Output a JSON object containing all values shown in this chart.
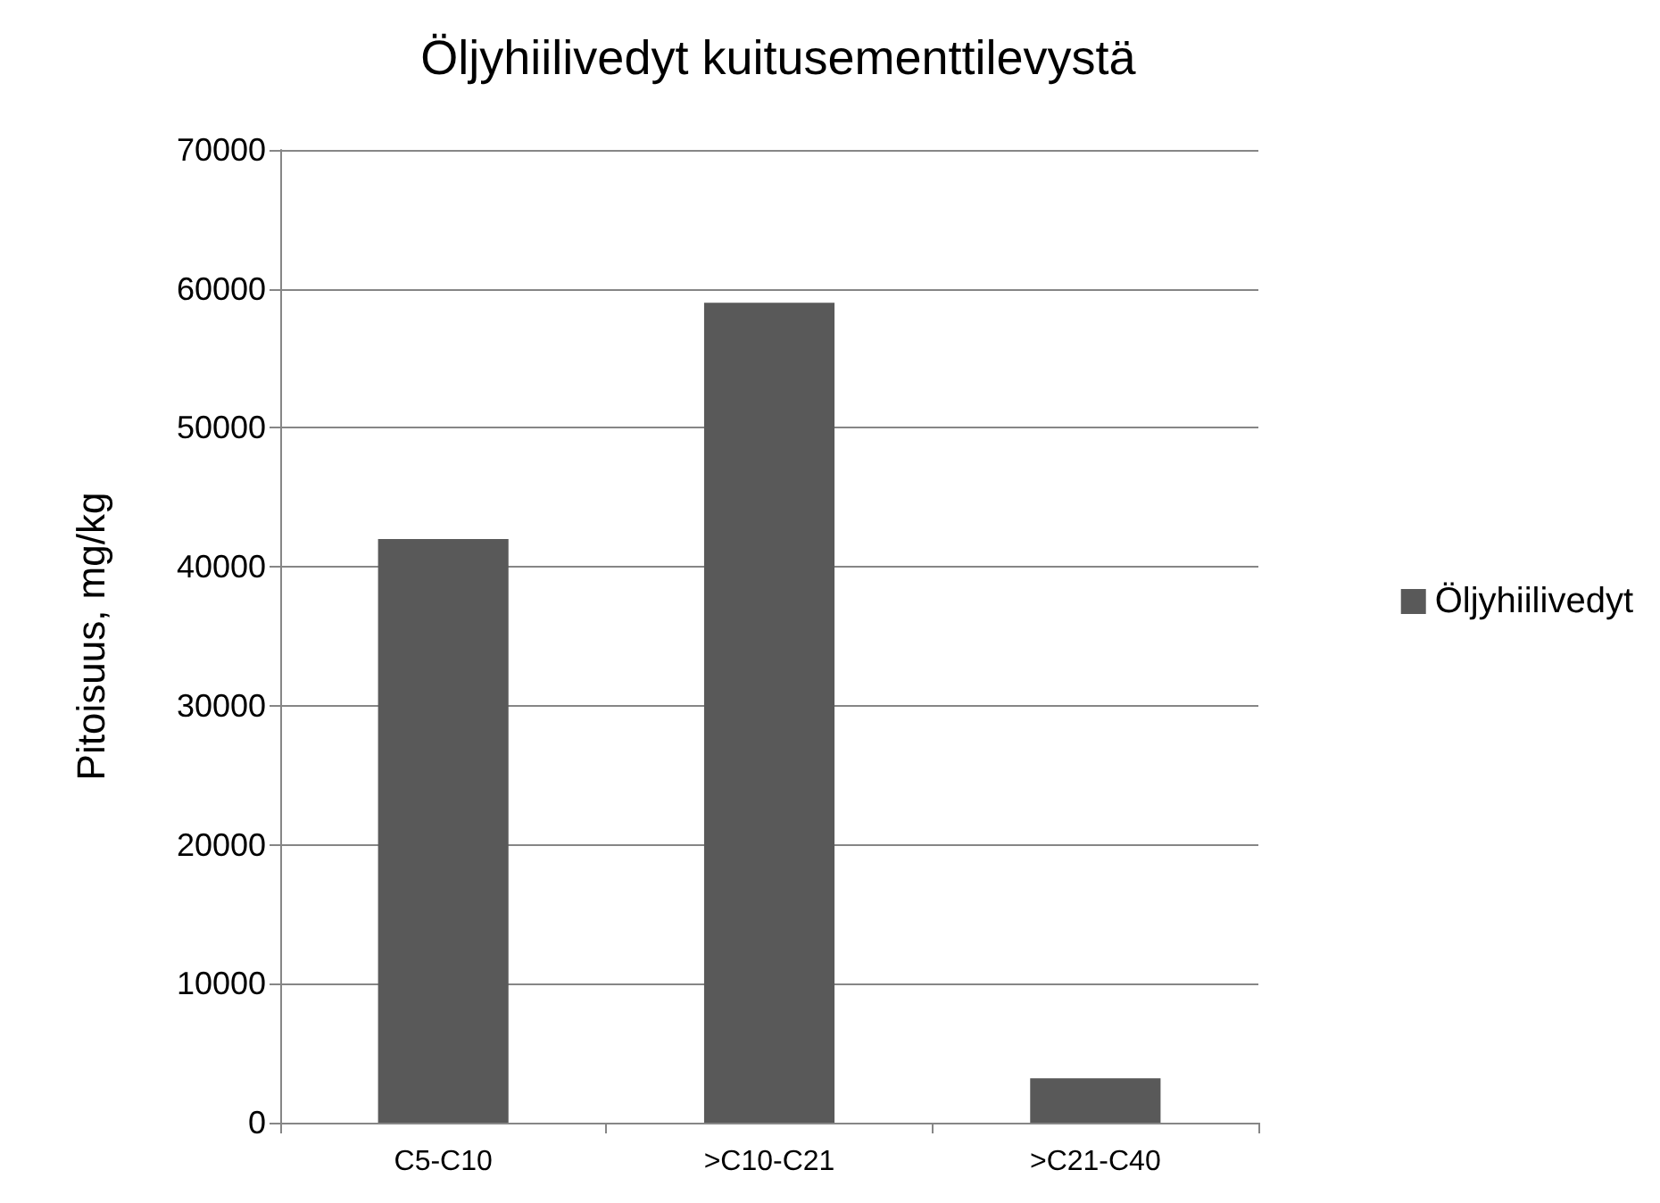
{
  "chart_data": {
    "type": "bar",
    "title": "Öljyhiilivedyt kuitusementtilevystä",
    "ylabel": "Pitoisuus, mg/kg",
    "categories": [
      "C5-C10",
      ">C10-C21",
      ">C21-C40"
    ],
    "series": [
      {
        "name": "Öljyhiilivedyt",
        "color": "#595959",
        "values": [
          42000,
          59000,
          3200
        ]
      }
    ],
    "ylim": [
      0,
      70000
    ],
    "yticks": [
      0,
      10000,
      20000,
      30000,
      40000,
      50000,
      60000,
      70000
    ],
    "grid": "y",
    "legend": "right"
  }
}
